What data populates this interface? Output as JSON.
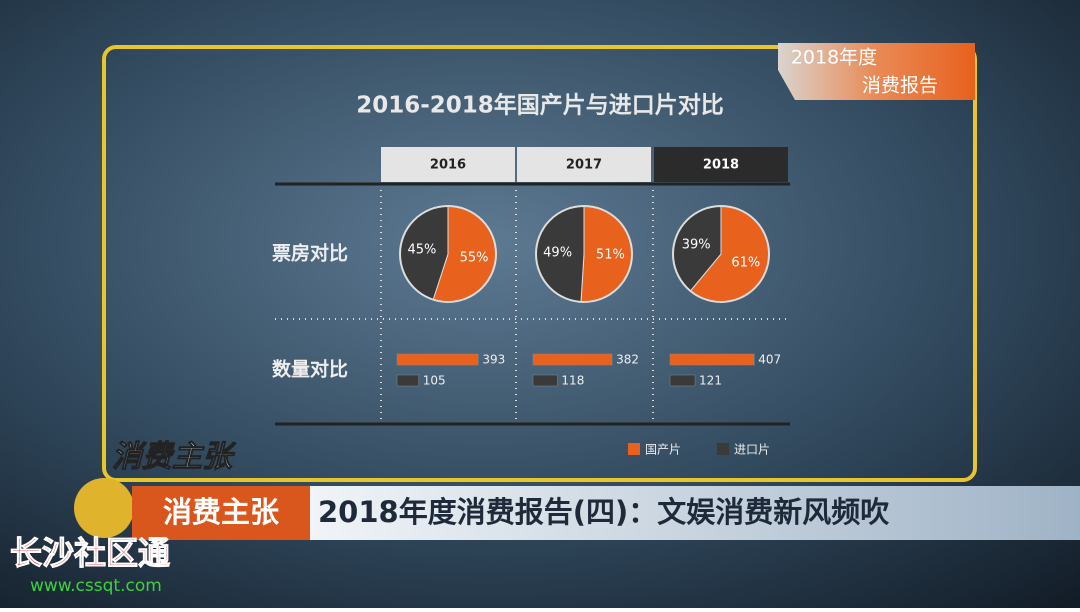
{
  "badge": {
    "line1": "2018年度",
    "line2": "消费报告"
  },
  "panel": {
    "title": "2016-2018年国产片与进口片对比",
    "row_labels": [
      "票房对比",
      "数量对比"
    ]
  },
  "legend": [
    {
      "name": "国产片",
      "color": "#e8611d"
    },
    {
      "name": "进口片",
      "color": "#3a3a3a"
    }
  ],
  "chart_data": [
    {
      "type": "pie",
      "title": "2016",
      "values": [
        55,
        45
      ],
      "value_labels": [
        "55%",
        "45%"
      ]
    },
    {
      "type": "pie",
      "title": "2017",
      "values": [
        51,
        49
      ],
      "value_labels": [
        "51%",
        "49%"
      ]
    },
    {
      "type": "pie",
      "title": "2018",
      "values": [
        61,
        39
      ],
      "value_labels": [
        "61%",
        "39%"
      ]
    },
    {
      "type": "bar",
      "values": [
        393,
        105
      ]
    },
    {
      "type": "bar",
      "values": [
        382,
        118
      ]
    },
    {
      "type": "bar",
      "values": [
        407,
        121
      ]
    }
  ],
  "logo": "消费主张",
  "banner": {
    "tag": "消费主张",
    "headline": "2018年度消费报告(四)：文娱消费新风频吹"
  },
  "watermark": {
    "name": "长沙社区通",
    "url": "www.cssqt.com"
  }
}
